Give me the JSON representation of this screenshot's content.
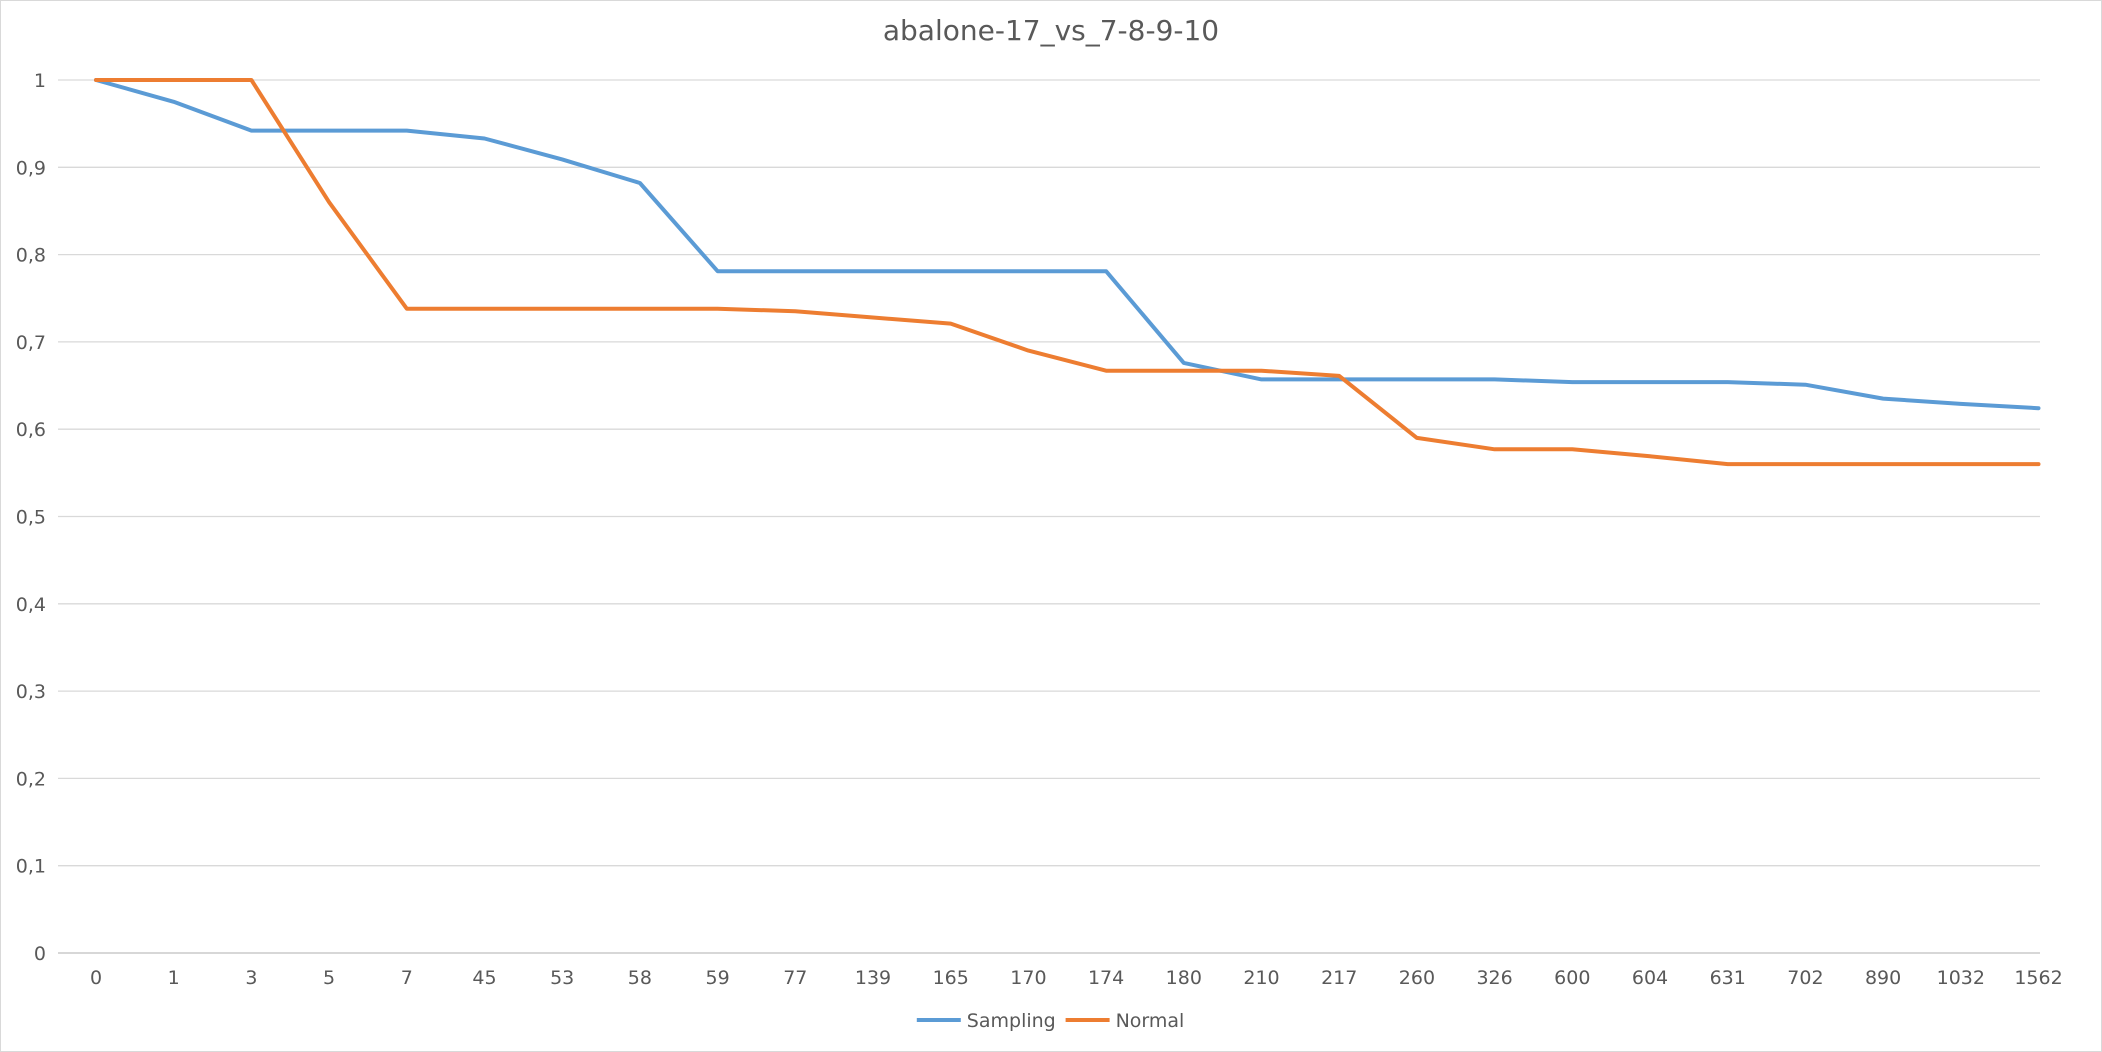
{
  "chart_data": {
    "type": "line",
    "title": "abalone-17_vs_7-8-9-10",
    "categories": [
      "0",
      "1",
      "3",
      "5",
      "7",
      "45",
      "53",
      "58",
      "59",
      "77",
      "139",
      "165",
      "170",
      "174",
      "180",
      "210",
      "217",
      "260",
      "326",
      "600",
      "604",
      "631",
      "702",
      "890",
      "1032",
      "1562"
    ],
    "ylim": [
      0,
      1
    ],
    "yticks": [
      "0",
      "0,1",
      "0,2",
      "0,3",
      "0,4",
      "0,5",
      "0,6",
      "0,7",
      "0,8",
      "0,9",
      "1"
    ],
    "grid": true,
    "legend_position": "bottom",
    "series": [
      {
        "name": "Sampling",
        "color": "#5b9bd5",
        "values": [
          1,
          0.975,
          0.942,
          0.942,
          0.942,
          0.933,
          0.909,
          0.882,
          0.781,
          0.781,
          0.781,
          0.781,
          0.781,
          0.781,
          0.676,
          0.657,
          0.657,
          0.657,
          0.657,
          0.654,
          0.654,
          0.654,
          0.651,
          0.635,
          0.629,
          0.624
        ]
      },
      {
        "name": "Normal",
        "color": "#ed7d31",
        "values": [
          1,
          1,
          1,
          0.86,
          0.738,
          0.738,
          0.738,
          0.738,
          0.738,
          0.735,
          0.728,
          0.721,
          0.69,
          0.667,
          0.667,
          0.667,
          0.661,
          0.59,
          0.577,
          0.577,
          0.569,
          0.56,
          0.56,
          0.56,
          0.56,
          0.56
        ]
      }
    ]
  }
}
